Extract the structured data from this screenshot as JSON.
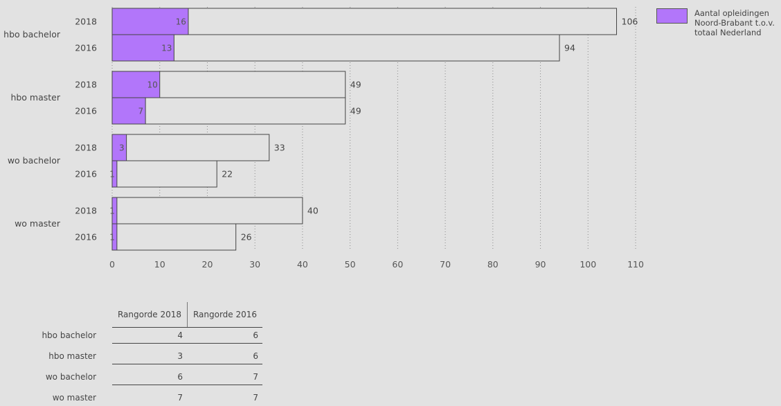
{
  "chart_data": {
    "type": "bar",
    "orientation": "horizontal",
    "groups": [
      "hbo bachelor",
      "hbo master",
      "wo bachelor",
      "wo master"
    ],
    "years": [
      "2018",
      "2016"
    ],
    "series": [
      {
        "name": "Aantal opleidingen Noord-Brabant t.o.v. totaal Nederland",
        "role": "part",
        "color": "#b276fa",
        "values": [
          [
            16,
            13
          ],
          [
            10,
            7
          ],
          [
            3,
            1
          ],
          [
            1,
            1
          ]
        ]
      },
      {
        "role": "total",
        "color": "#e2e2e2",
        "values": [
          [
            106,
            94
          ],
          [
            49,
            49
          ],
          [
            33,
            22
          ],
          [
            40,
            26
          ]
        ]
      }
    ],
    "xlim": [
      0,
      110
    ],
    "xticks": [
      "0",
      "10",
      "20",
      "30",
      "40",
      "50",
      "60",
      "70",
      "80",
      "90",
      "100",
      "110"
    ],
    "grid": "vertical dotted",
    "legend_position": "top-right"
  },
  "legend": {
    "label": "Aantal opleidingen Noord-Brabant t.o.v. totaal Nederland"
  },
  "rank_table": {
    "headers": [
      "Rangorde 2018",
      "Rangorde 2016"
    ],
    "rows": [
      {
        "label": "hbo bachelor",
        "r2018": "4",
        "r2016": "6"
      },
      {
        "label": "hbo master",
        "r2018": "3",
        "r2016": "6"
      },
      {
        "label": "wo bachelor",
        "r2018": "6",
        "r2016": "7"
      },
      {
        "label": "wo master",
        "r2018": "7",
        "r2016": "7"
      }
    ]
  }
}
